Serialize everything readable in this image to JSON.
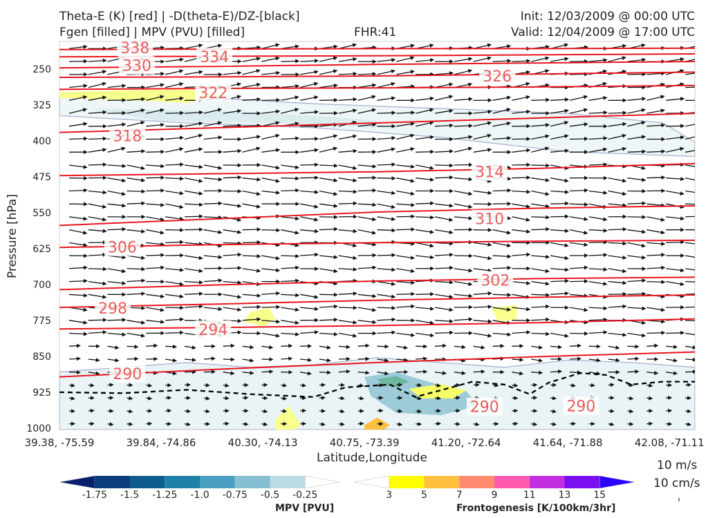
{
  "header": {
    "title_left_1": "Theta-E (K) [red] | -D(theta-E)/DZ-[black]",
    "title_left_2": "Fgen [filled] | MPV (PVU) [filled]",
    "fhr": "FHR:41",
    "init": "Init: 12/03/2009 @ 00:00 UTC",
    "valid": "Valid: 12/04/2009 @ 17:00 UTC"
  },
  "chart_data": {
    "type": "cross-section",
    "xlabel": "Latitude,Longitude",
    "ylabel": "Pressure [hPa]",
    "x_ticks": [
      "39.38, -75.59",
      "39.84, -74.86",
      "40.30, -74.13",
      "40.75, -73.39",
      "41.20, -72.64",
      "41.64, -71.88",
      "42.08, -71.11"
    ],
    "y_ticks": [
      250,
      325,
      400,
      475,
      550,
      625,
      700,
      775,
      850,
      925,
      1000
    ],
    "ylim": [
      190,
      1000
    ],
    "x_range": [
      0,
      1
    ],
    "theta_e_contours": [
      {
        "label": "338",
        "points": [
          [
            0,
            207
          ],
          [
            0.25,
            206
          ],
          [
            0.5,
            205
          ],
          [
            0.75,
            205
          ],
          [
            1,
            204
          ]
        ]
      },
      {
        "label": "334",
        "points": [
          [
            0,
            222
          ],
          [
            0.25,
            221
          ],
          [
            0.5,
            220
          ],
          [
            0.75,
            218
          ],
          [
            1,
            216
          ]
        ]
      },
      {
        "label": "330",
        "points": [
          [
            0,
            245
          ],
          [
            0.25,
            242
          ],
          [
            0.5,
            238
          ],
          [
            0.75,
            235
          ],
          [
            1,
            232
          ]
        ]
      },
      {
        "label": "326",
        "points": [
          [
            0,
            265
          ],
          [
            0.25,
            264
          ],
          [
            0.5,
            262
          ],
          [
            0.75,
            258
          ],
          [
            1,
            254
          ]
        ]
      },
      {
        "label": "322",
        "points": [
          [
            0,
            290
          ],
          [
            0.25,
            288
          ],
          [
            0.5,
            287
          ],
          [
            0.75,
            285
          ],
          [
            1,
            282
          ]
        ]
      },
      {
        "label": "318",
        "points": [
          [
            0,
            380
          ],
          [
            0.25,
            370
          ],
          [
            0.5,
            360
          ],
          [
            0.75,
            350
          ],
          [
            1,
            340
          ]
        ]
      },
      {
        "label": "314",
        "points": [
          [
            0,
            470
          ],
          [
            0.25,
            466
          ],
          [
            0.5,
            462
          ],
          [
            0.75,
            455
          ],
          [
            1,
            445
          ]
        ]
      },
      {
        "label": "310",
        "points": [
          [
            0,
            574
          ],
          [
            0.25,
            560
          ],
          [
            0.5,
            546
          ],
          [
            0.75,
            538
          ],
          [
            1,
            533
          ]
        ]
      },
      {
        "label": "306",
        "points": [
          [
            0,
            620
          ],
          [
            0.25,
            614
          ],
          [
            0.5,
            610
          ],
          [
            0.75,
            607
          ],
          [
            1,
            605
          ]
        ]
      },
      {
        "label": "302",
        "points": [
          [
            0,
            708
          ],
          [
            0.25,
            698
          ],
          [
            0.5,
            690
          ],
          [
            0.75,
            685
          ],
          [
            1,
            682
          ]
        ]
      },
      {
        "label": "298",
        "points": [
          [
            0,
            745
          ],
          [
            0.25,
            738
          ],
          [
            0.5,
            730
          ],
          [
            0.75,
            724
          ],
          [
            1,
            719
          ]
        ]
      },
      {
        "label": "294",
        "points": [
          [
            0,
            790
          ],
          [
            0.25,
            787
          ],
          [
            0.5,
            783
          ],
          [
            0.75,
            777
          ],
          [
            1,
            769
          ]
        ]
      },
      {
        "label": "290",
        "points": [
          [
            0,
            890
          ],
          [
            0.25,
            874
          ],
          [
            0.5,
            860
          ],
          [
            0.75,
            848
          ],
          [
            1,
            838
          ]
        ]
      }
    ],
    "contour_labels": [
      {
        "text": "338",
        "x": 0.095,
        "p": 203
      },
      {
        "text": "334",
        "x": 0.22,
        "p": 222
      },
      {
        "text": "330",
        "x": 0.098,
        "p": 240
      },
      {
        "text": "326",
        "x": 0.665,
        "p": 262
      },
      {
        "text": "322",
        "x": 0.218,
        "p": 297
      },
      {
        "text": "318",
        "x": 0.083,
        "p": 387
      },
      {
        "text": "314",
        "x": 0.653,
        "p": 462
      },
      {
        "text": "310",
        "x": 0.653,
        "p": 560
      },
      {
        "text": "306",
        "x": 0.075,
        "p": 619
      },
      {
        "text": "302",
        "x": 0.662,
        "p": 688
      },
      {
        "text": "298",
        "x": 0.06,
        "p": 746
      },
      {
        "text": "294",
        "x": 0.218,
        "p": 791
      },
      {
        "text": "290",
        "x": 0.083,
        "p": 883
      },
      {
        "text": "290",
        "x": 0.645,
        "p": 952
      },
      {
        "text": "290",
        "x": 0.797,
        "p": 950
      }
    ],
    "dashed_boundary": [
      [
        0,
        922
      ],
      [
        0.1,
        924
      ],
      [
        0.2,
        917
      ],
      [
        0.3,
        926
      ],
      [
        0.4,
        932
      ],
      [
        0.45,
        912
      ],
      [
        0.52,
        906
      ],
      [
        0.56,
        932
      ],
      [
        0.6,
        918
      ],
      [
        0.65,
        900
      ],
      [
        0.7,
        906
      ],
      [
        0.74,
        926
      ],
      [
        0.77,
        902
      ],
      [
        0.82,
        882
      ],
      [
        0.86,
        886
      ],
      [
        0.9,
        906
      ],
      [
        0.95,
        900
      ],
      [
        1,
        900
      ]
    ],
    "mpv_colorbar": {
      "title": "MPV [PVU]",
      "ticks": [
        "-1.75",
        "-1.5",
        "-1.25",
        "-1.0",
        "-0.75",
        "-0.5",
        "-0.25"
      ],
      "colors": [
        "#08206b",
        "#0b3d7c",
        "#0f5c8e",
        "#1f80a8",
        "#4aa0c0",
        "#86bfd4",
        "#bcdce4",
        "#ffffff"
      ]
    },
    "fgen_colorbar": {
      "title": "Frontogenesis [K/100km/3hr]",
      "ticks": [
        "3",
        "5",
        "7",
        "9",
        "11",
        "13",
        "15"
      ],
      "colors": [
        "#ffffff",
        "#ffff00",
        "#ffc040",
        "#ff8a70",
        "#ff5ab0",
        "#c02ee0",
        "#7a10f0",
        "#2a00ff"
      ]
    },
    "vector_scale": {
      "horizontal": "10 m/s",
      "vertical": "10 cm/s"
    },
    "colors": {
      "theta_e": "#e8141c",
      "theta_e_label": "#e85c5c",
      "arrows": "#111111",
      "mpv_outline": "#a6b2cf"
    }
  }
}
